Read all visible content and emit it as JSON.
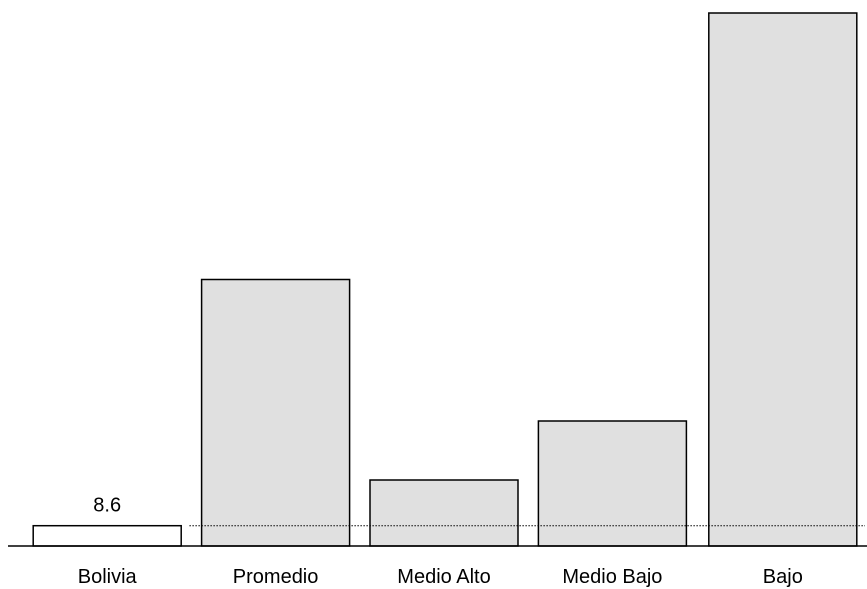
{
  "chart_data": {
    "type": "bar",
    "categories": [
      "Bolivia",
      "Promedio",
      "Medio Alto",
      "Medio Bajo",
      "Bajo"
    ],
    "values": [
      8.6,
      113,
      28,
      53,
      226
    ],
    "data_labels": [
      "8.6",
      "",
      "",
      "",
      ""
    ],
    "reference_line": 8.6,
    "ylim": [
      0,
      230
    ],
    "title": "",
    "xlabel": "",
    "ylabel": "",
    "grid": false,
    "colors": {
      "first_bar_fill": "#ffffff",
      "bar_fill": "#e0e0e0",
      "bar_stroke": "#000000",
      "reference_line": "#000000"
    }
  }
}
